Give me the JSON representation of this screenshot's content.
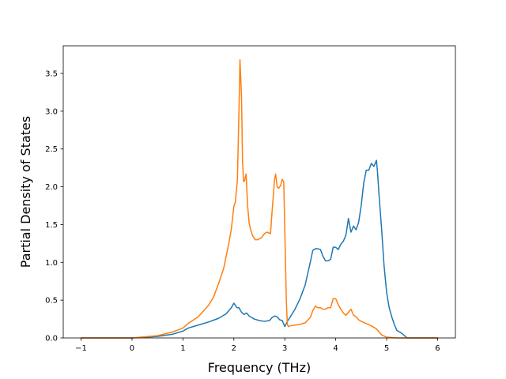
{
  "chart_data": {
    "type": "line",
    "xlabel": "Frequency (THz)",
    "ylabel": "Partial Density of States",
    "xlim": [
      -1.35,
      6.35
    ],
    "ylim": [
      0,
      3.5
    ],
    "xticks": [
      -1,
      0,
      1,
      2,
      3,
      4,
      5,
      6
    ],
    "xtick_labels": [
      "−1",
      "0",
      "1",
      "2",
      "3",
      "4",
      "5",
      "6"
    ],
    "yticks": [
      0.0,
      0.5,
      1.0,
      1.5,
      2.0,
      2.5,
      3.0,
      3.5
    ],
    "ytick_labels": [
      "0.0",
      "0.5",
      "1.0",
      "1.5",
      "2.0",
      "2.5",
      "3.0",
      "3.5"
    ],
    "grid": false,
    "series": [
      {
        "color": "#1f77b4",
        "x": [
          -1.0,
          0.0,
          0.5,
          0.8,
          1.0,
          1.1,
          1.3,
          1.5,
          1.7,
          1.85,
          1.95,
          2.0,
          2.03,
          2.06,
          2.1,
          2.15,
          2.2,
          2.25,
          2.3,
          2.35,
          2.4,
          2.5,
          2.6,
          2.7,
          2.75,
          2.8,
          2.85,
          2.9,
          2.95,
          3.0,
          3.05,
          3.1,
          3.2,
          3.3,
          3.4,
          3.5,
          3.55,
          3.6,
          3.65,
          3.7,
          3.75,
          3.8,
          3.85,
          3.9,
          3.95,
          4.0,
          4.05,
          4.1,
          4.15,
          4.2,
          4.25,
          4.3,
          4.35,
          4.4,
          4.45,
          4.5,
          4.55,
          4.6,
          4.65,
          4.7,
          4.75,
          4.8,
          4.82,
          4.85,
          4.9,
          4.95,
          5.0,
          5.05,
          5.1,
          5.15,
          5.2,
          5.3,
          5.4,
          5.5,
          6.0
        ],
        "y": [
          0.0,
          0.0,
          0.02,
          0.05,
          0.09,
          0.13,
          0.17,
          0.21,
          0.26,
          0.32,
          0.4,
          0.46,
          0.43,
          0.4,
          0.4,
          0.34,
          0.31,
          0.33,
          0.29,
          0.27,
          0.25,
          0.23,
          0.22,
          0.23,
          0.27,
          0.29,
          0.28,
          0.24,
          0.23,
          0.15,
          0.22,
          0.27,
          0.38,
          0.52,
          0.7,
          1.0,
          1.16,
          1.18,
          1.18,
          1.17,
          1.08,
          1.02,
          1.02,
          1.04,
          1.2,
          1.2,
          1.17,
          1.24,
          1.28,
          1.36,
          1.58,
          1.4,
          1.48,
          1.43,
          1.53,
          1.75,
          2.05,
          2.22,
          2.22,
          2.31,
          2.27,
          2.35,
          2.2,
          1.9,
          1.45,
          0.95,
          0.6,
          0.4,
          0.28,
          0.18,
          0.1,
          0.06,
          0.0,
          0.0,
          0.0
        ]
      },
      {
        "color": "#ff7f0e",
        "x": [
          -1.0,
          0.0,
          0.5,
          0.8,
          1.0,
          1.1,
          1.3,
          1.5,
          1.6,
          1.7,
          1.8,
          1.9,
          1.95,
          2.0,
          2.03,
          2.07,
          2.1,
          2.12,
          2.15,
          2.17,
          2.19,
          2.21,
          2.24,
          2.27,
          2.3,
          2.33,
          2.37,
          2.42,
          2.47,
          2.55,
          2.6,
          2.65,
          2.72,
          2.75,
          2.8,
          2.82,
          2.85,
          2.88,
          2.92,
          2.95,
          2.98,
          3.0,
          3.03,
          3.05,
          3.07,
          3.1,
          3.2,
          3.3,
          3.4,
          3.5,
          3.55,
          3.6,
          3.65,
          3.7,
          3.75,
          3.8,
          3.85,
          3.9,
          3.95,
          4.0,
          4.05,
          4.1,
          4.15,
          4.2,
          4.25,
          4.3,
          4.35,
          4.4,
          4.45,
          4.5,
          4.6,
          4.7,
          4.8,
          4.85,
          4.9,
          5.0,
          5.2,
          5.4,
          5.6,
          6.0
        ],
        "y": [
          0.0,
          0.0,
          0.03,
          0.08,
          0.13,
          0.19,
          0.28,
          0.43,
          0.54,
          0.72,
          0.92,
          1.25,
          1.44,
          1.74,
          1.8,
          2.1,
          3.0,
          3.68,
          3.2,
          2.35,
          2.07,
          2.08,
          2.17,
          1.75,
          1.52,
          1.43,
          1.35,
          1.3,
          1.3,
          1.33,
          1.38,
          1.4,
          1.38,
          1.67,
          2.1,
          2.17,
          2.0,
          1.98,
          2.02,
          2.1,
          2.06,
          1.43,
          0.5,
          0.18,
          0.15,
          0.16,
          0.17,
          0.18,
          0.2,
          0.27,
          0.36,
          0.42,
          0.4,
          0.4,
          0.38,
          0.38,
          0.4,
          0.4,
          0.52,
          0.52,
          0.44,
          0.38,
          0.33,
          0.3,
          0.34,
          0.38,
          0.3,
          0.28,
          0.24,
          0.22,
          0.19,
          0.16,
          0.12,
          0.08,
          0.04,
          0.01,
          0.0,
          0.0,
          0.0,
          0.0
        ]
      }
    ]
  }
}
